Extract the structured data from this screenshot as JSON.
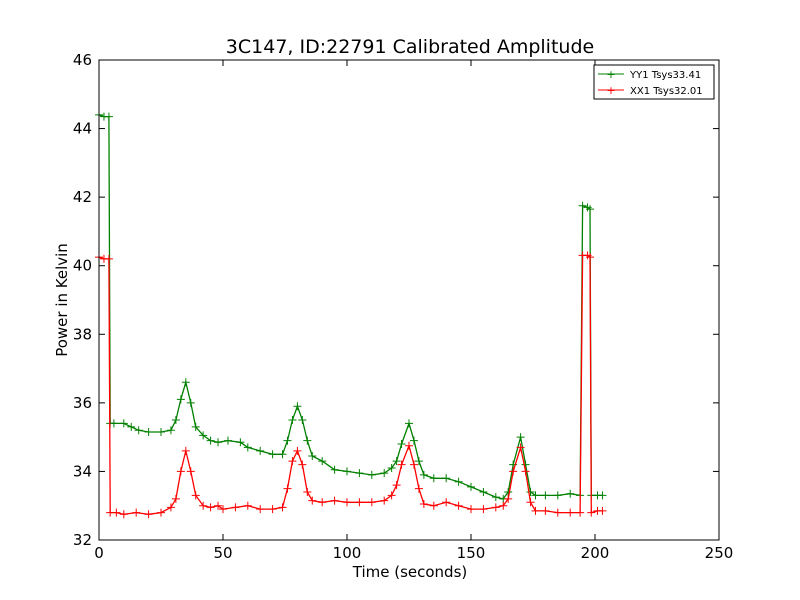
{
  "chart_data": {
    "type": "line",
    "title": "3C147, ID:22791 Calibrated Amplitude",
    "xlabel": "Time (seconds)",
    "ylabel": "Power in Kelvin",
    "xlim": [
      0,
      250
    ],
    "ylim": [
      32,
      46
    ],
    "xticks": [
      "0",
      "50",
      "100",
      "150",
      "200",
      "250"
    ],
    "yticks": [
      "32",
      "34",
      "36",
      "38",
      "40",
      "42",
      "44",
      "46"
    ],
    "grid": false,
    "legend_position": "top-right",
    "series": [
      {
        "name": "YY1 Tsys33.41",
        "color": "#008000",
        "marker": "+",
        "points": [
          [
            0,
            44.4
          ],
          [
            2,
            44.35
          ],
          [
            4,
            44.35
          ],
          [
            4.5,
            35.4
          ],
          [
            6,
            35.4
          ],
          [
            10,
            35.4
          ],
          [
            13,
            35.3
          ],
          [
            16,
            35.2
          ],
          [
            20,
            35.15
          ],
          [
            25,
            35.15
          ],
          [
            29,
            35.2
          ],
          [
            31,
            35.5
          ],
          [
            33,
            36.1
          ],
          [
            35,
            36.6
          ],
          [
            37,
            36.0
          ],
          [
            39,
            35.3
          ],
          [
            42,
            35.05
          ],
          [
            45,
            34.9
          ],
          [
            48,
            34.85
          ],
          [
            52,
            34.9
          ],
          [
            57,
            34.85
          ],
          [
            60,
            34.7
          ],
          [
            65,
            34.6
          ],
          [
            70,
            34.5
          ],
          [
            74,
            34.5
          ],
          [
            76,
            34.9
          ],
          [
            78,
            35.5
          ],
          [
            80,
            35.9
          ],
          [
            82,
            35.5
          ],
          [
            84,
            34.9
          ],
          [
            86,
            34.45
          ],
          [
            90,
            34.3
          ],
          [
            95,
            34.05
          ],
          [
            100,
            34.0
          ],
          [
            105,
            33.95
          ],
          [
            110,
            33.9
          ],
          [
            115,
            33.95
          ],
          [
            118,
            34.1
          ],
          [
            120,
            34.3
          ],
          [
            122,
            34.8
          ],
          [
            125,
            35.4
          ],
          [
            127,
            34.9
          ],
          [
            129,
            34.3
          ],
          [
            131,
            33.9
          ],
          [
            135,
            33.8
          ],
          [
            140,
            33.8
          ],
          [
            145,
            33.7
          ],
          [
            150,
            33.55
          ],
          [
            155,
            33.4
          ],
          [
            160,
            33.25
          ],
          [
            163,
            33.2
          ],
          [
            165,
            33.4
          ],
          [
            167,
            34.2
          ],
          [
            170,
            35.0
          ],
          [
            172,
            34.2
          ],
          [
            174,
            33.4
          ],
          [
            176,
            33.3
          ],
          [
            180,
            33.3
          ],
          [
            185,
            33.3
          ],
          [
            190,
            33.35
          ],
          [
            194,
            33.3
          ],
          [
            195,
            41.75
          ],
          [
            197,
            41.7
          ],
          [
            198,
            41.65
          ],
          [
            198.5,
            33.3
          ],
          [
            201,
            33.3
          ],
          [
            203,
            33.3
          ]
        ]
      },
      {
        "name": "XX1 Tsys32.01",
        "color": "#ff0000",
        "marker": "+",
        "points": [
          [
            0,
            40.25
          ],
          [
            2,
            40.2
          ],
          [
            4,
            40.2
          ],
          [
            4.5,
            32.8
          ],
          [
            7,
            32.8
          ],
          [
            10,
            32.75
          ],
          [
            15,
            32.8
          ],
          [
            20,
            32.75
          ],
          [
            25,
            32.8
          ],
          [
            29,
            32.95
          ],
          [
            31,
            33.2
          ],
          [
            33,
            34.0
          ],
          [
            35,
            34.6
          ],
          [
            37,
            34.0
          ],
          [
            39,
            33.3
          ],
          [
            42,
            33.0
          ],
          [
            45,
            32.95
          ],
          [
            48,
            33.0
          ],
          [
            50,
            32.9
          ],
          [
            55,
            32.95
          ],
          [
            60,
            33.0
          ],
          [
            65,
            32.9
          ],
          [
            70,
            32.9
          ],
          [
            74,
            32.95
          ],
          [
            76,
            33.5
          ],
          [
            78,
            34.3
          ],
          [
            80,
            34.6
          ],
          [
            82,
            34.2
          ],
          [
            84,
            33.4
          ],
          [
            86,
            33.15
          ],
          [
            90,
            33.1
          ],
          [
            95,
            33.15
          ],
          [
            100,
            33.1
          ],
          [
            105,
            33.1
          ],
          [
            110,
            33.1
          ],
          [
            115,
            33.15
          ],
          [
            118,
            33.3
          ],
          [
            120,
            33.6
          ],
          [
            122,
            34.2
          ],
          [
            125,
            34.75
          ],
          [
            127,
            34.2
          ],
          [
            129,
            33.5
          ],
          [
            131,
            33.05
          ],
          [
            135,
            33.0
          ],
          [
            140,
            33.1
          ],
          [
            145,
            33.0
          ],
          [
            150,
            32.9
          ],
          [
            155,
            32.9
          ],
          [
            160,
            32.95
          ],
          [
            163,
            33.0
          ],
          [
            165,
            33.2
          ],
          [
            167,
            34.0
          ],
          [
            170,
            34.7
          ],
          [
            172,
            34.0
          ],
          [
            174,
            33.1
          ],
          [
            176,
            32.85
          ],
          [
            180,
            32.85
          ],
          [
            185,
            32.8
          ],
          [
            190,
            32.8
          ],
          [
            194,
            32.8
          ],
          [
            195,
            40.3
          ],
          [
            197,
            40.3
          ],
          [
            198,
            40.25
          ],
          [
            198.5,
            32.8
          ],
          [
            201,
            32.85
          ],
          [
            203,
            32.85
          ]
        ]
      }
    ]
  }
}
